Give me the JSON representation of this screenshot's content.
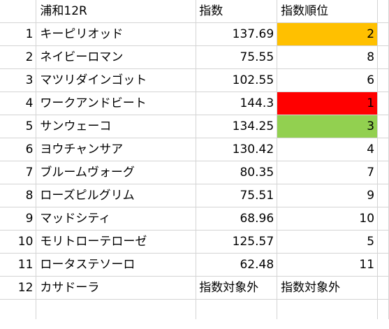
{
  "header": {
    "race": "浦和12R",
    "index": "指数",
    "rank": "指数順位"
  },
  "rows": [
    {
      "num": "1",
      "name": "キーピリオッド",
      "index": "137.69",
      "rank": "2",
      "highlight": "#ffc000"
    },
    {
      "num": "2",
      "name": "ネイビーロマン",
      "index": "75.55",
      "rank": "8",
      "highlight": ""
    },
    {
      "num": "3",
      "name": "マツリダインゴット",
      "index": "102.55",
      "rank": "6",
      "highlight": ""
    },
    {
      "num": "4",
      "name": "ワークアンドビート",
      "index": "144.3",
      "rank": "1",
      "highlight": "#ff0000"
    },
    {
      "num": "5",
      "name": "サンウェーコ",
      "index": "134.25",
      "rank": "3",
      "highlight": "#92d050"
    },
    {
      "num": "6",
      "name": "ヨウチャンサア",
      "index": "130.42",
      "rank": "4",
      "highlight": ""
    },
    {
      "num": "7",
      "name": "ブルームヴォーグ",
      "index": "80.35",
      "rank": "7",
      "highlight": ""
    },
    {
      "num": "8",
      "name": "ローズピルグリム",
      "index": "75.51",
      "rank": "9",
      "highlight": ""
    },
    {
      "num": "9",
      "name": "マッドシティ",
      "index": "68.96",
      "rank": "10",
      "highlight": ""
    },
    {
      "num": "10",
      "name": "モリトローテローゼ",
      "index": "125.57",
      "rank": "5",
      "highlight": ""
    },
    {
      "num": "11",
      "name": "ロータステソーロ",
      "index": "62.48",
      "rank": "11",
      "highlight": ""
    },
    {
      "num": "12",
      "name": "カサドーラ",
      "index": "指数対象外",
      "rank": "指数対象外",
      "highlight": ""
    }
  ]
}
